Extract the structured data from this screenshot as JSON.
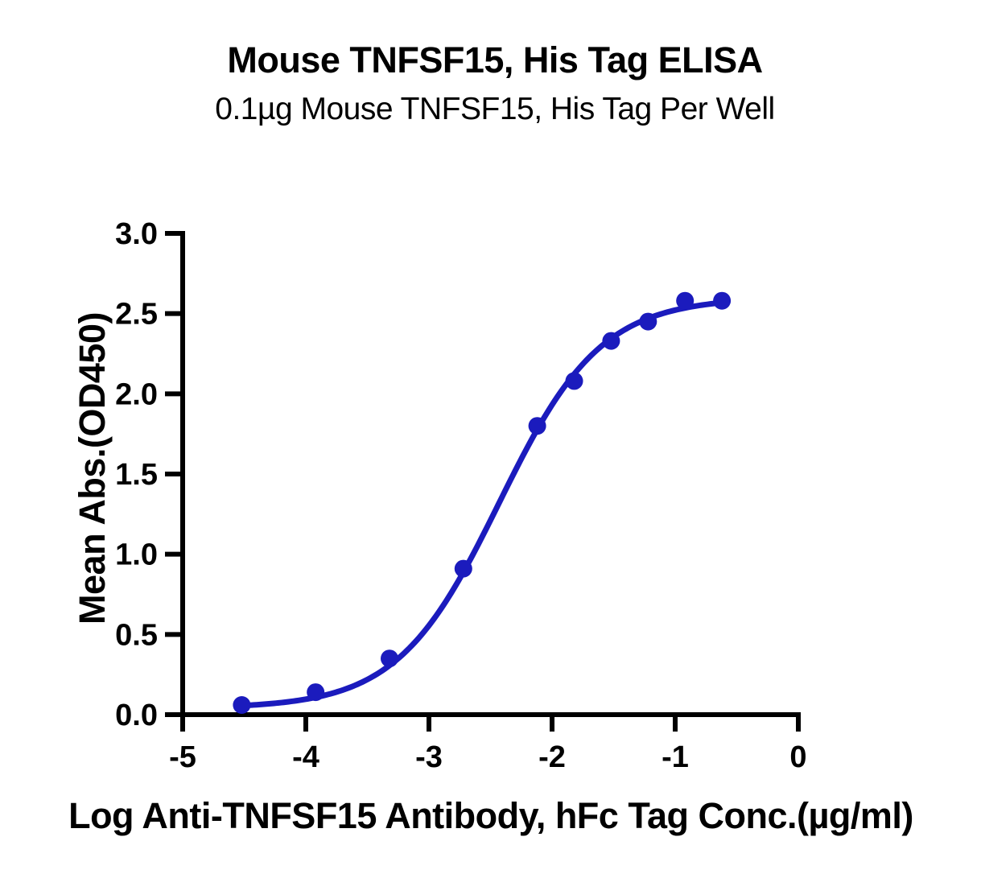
{
  "page": {
    "background": "#ffffff",
    "text_color": "#000000"
  },
  "chart_data": {
    "type": "scatter",
    "title": "Mouse TNFSF15, His Tag ELISA",
    "subtitle": "0.1µg Mouse TNFSF15, His Tag Per Well",
    "xlabel": "Log Anti-TNFSF15 Antibody, hFc Tag Conc.(µg/ml)",
    "ylabel": "Mean Abs.(OD450)",
    "xlim": [
      -5,
      0
    ],
    "ylim": [
      0,
      3
    ],
    "x_ticks": [
      -5,
      -4,
      -3,
      -2,
      -1,
      0
    ],
    "x_tick_labels": [
      "-5",
      "-4",
      "-3",
      "-2",
      "-1",
      "0"
    ],
    "y_ticks": [
      0,
      0.5,
      1,
      1.5,
      2,
      2.5,
      3
    ],
    "y_tick_labels": [
      "0.0",
      "0.5",
      "1.0",
      "1.5",
      "2.0",
      "2.5",
      "3.0"
    ],
    "grid": false,
    "legend": "none",
    "axis_color": "#000000",
    "series": [
      {
        "marker": "circle",
        "color": "#1b1bbd",
        "points": [
          [
            -4.52,
            0.06
          ],
          [
            -3.92,
            0.14
          ],
          [
            -3.32,
            0.35
          ],
          [
            -2.72,
            0.91
          ],
          [
            -2.12,
            1.8
          ],
          [
            -1.82,
            2.08
          ],
          [
            -1.52,
            2.33
          ],
          [
            -1.22,
            2.45
          ],
          [
            -0.92,
            2.58
          ],
          [
            -0.62,
            2.58
          ]
        ]
      }
    ],
    "fit_curve": {
      "model": "4PL",
      "bottom": 0.04,
      "top": 2.6,
      "log_ec50": -2.43,
      "hill": 1.05,
      "x_start": -4.52,
      "x_end": -0.62,
      "color": "#1b1bbd"
    }
  }
}
